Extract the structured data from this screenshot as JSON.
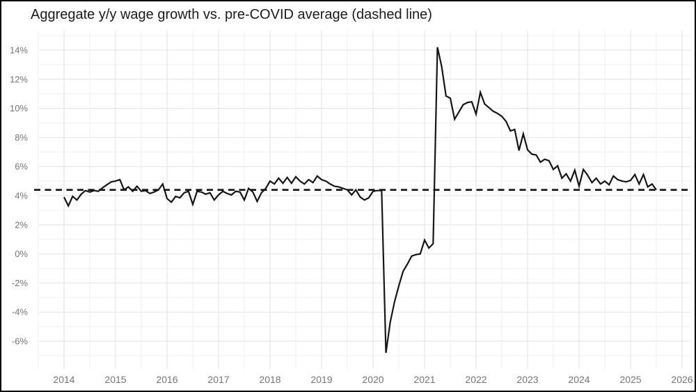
{
  "chart_data": {
    "type": "line",
    "title": "Aggregate y/y wage growth vs. pre-COVID average (dashed line)",
    "x_unit": "month",
    "x_start": "2014-01",
    "x_end": "2025-07",
    "x_tick_years": [
      2014,
      2015,
      2016,
      2017,
      2018,
      2019,
      2020,
      2021,
      2022,
      2023,
      2024,
      2025,
      2026
    ],
    "y_ticks": [
      14,
      12,
      10,
      8,
      6,
      4,
      2,
      0,
      -2,
      -4,
      -6
    ],
    "y_tick_labels": [
      "14%",
      "12%",
      "10%",
      "8%",
      "6%",
      "4%",
      "2%",
      "0%",
      "-2%",
      "-4%",
      "-6%"
    ],
    "ylim": [
      -7.9,
      15.3
    ],
    "xlim_years": [
      2013.5,
      2026.2
    ],
    "grid": "on",
    "legend_position": "none",
    "reference_line": {
      "label": "pre-COVID average (dashed line)",
      "value": 4.4,
      "style": "dashed"
    },
    "series": [
      {
        "name": "Aggregate y/y wage growth",
        "values": [
          3.9,
          3.3,
          3.95,
          3.7,
          4.1,
          4.35,
          4.25,
          4.35,
          4.3,
          4.55,
          4.75,
          4.95,
          5.0,
          5.1,
          4.4,
          4.6,
          4.3,
          4.65,
          4.3,
          4.35,
          4.15,
          4.25,
          4.4,
          4.8,
          3.8,
          3.55,
          3.95,
          3.85,
          4.2,
          4.3,
          3.4,
          4.3,
          4.25,
          4.1,
          4.2,
          3.7,
          4.05,
          4.3,
          4.15,
          4.05,
          4.3,
          4.25,
          3.7,
          4.5,
          4.25,
          3.6,
          4.2,
          4.5,
          5.0,
          4.8,
          5.2,
          4.85,
          5.25,
          4.85,
          5.3,
          5.0,
          4.8,
          5.1,
          4.9,
          5.35,
          5.1,
          5.0,
          4.8,
          4.65,
          4.6,
          4.5,
          4.4,
          4.05,
          4.4,
          3.9,
          3.7,
          3.85,
          4.3,
          4.35,
          4.35,
          -6.8,
          -4.7,
          -3.3,
          -2.2,
          -1.2,
          -0.7,
          -0.15,
          -0.05,
          0.0,
          0.95,
          0.4,
          0.7,
          14.2,
          12.85,
          10.85,
          10.7,
          9.25,
          9.75,
          10.25,
          10.4,
          10.45,
          9.6,
          11.1,
          10.3,
          10.05,
          9.8,
          9.65,
          9.45,
          9.1,
          8.45,
          8.55,
          7.1,
          8.25,
          7.15,
          6.85,
          6.8,
          6.3,
          6.5,
          6.4,
          5.8,
          6.05,
          5.2,
          5.5,
          5.0,
          5.75,
          4.65,
          5.8,
          5.4,
          4.9,
          5.2,
          4.8,
          5.0,
          4.75,
          5.35,
          5.1,
          5.0,
          4.95,
          5.05,
          5.45,
          4.8,
          5.45,
          4.6,
          4.8,
          4.4
        ]
      }
    ],
    "colors": {
      "line": "#161616",
      "reference_line": "#111111",
      "grid_major": "#e2e2e2",
      "grid_minor": "#efefef",
      "tick_label": "#757575",
      "title": "#1b1b1b",
      "background": "#ffffff",
      "border": "#000000"
    }
  }
}
